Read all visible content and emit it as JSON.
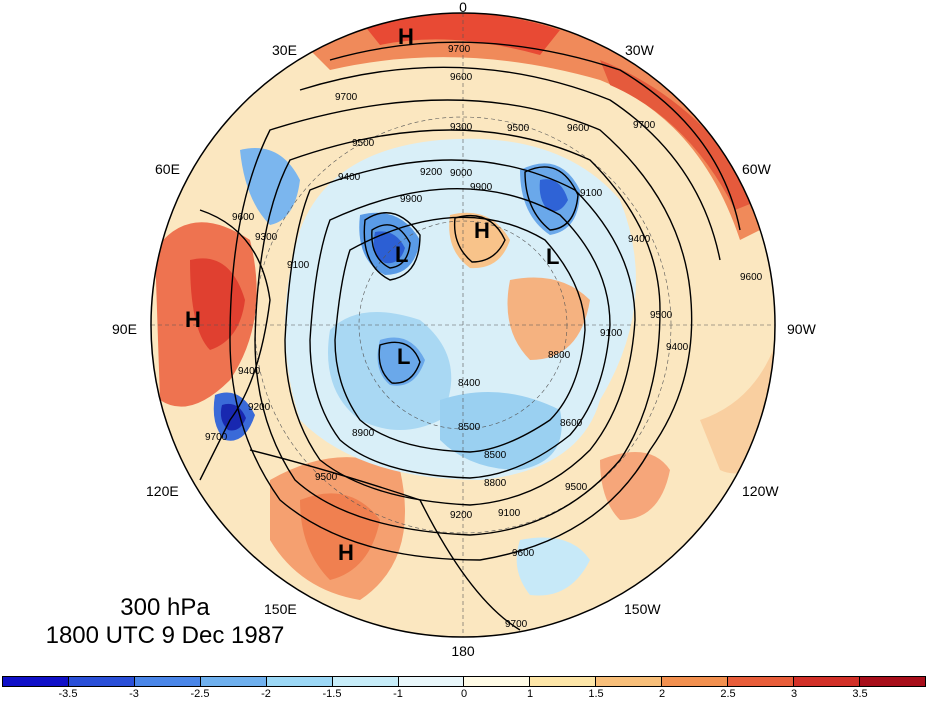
{
  "caption": {
    "level": "300 hPa",
    "time": "1800 UTC 9 Dec 1987"
  },
  "longitude_labels": [
    {
      "key": "0",
      "text": "0"
    },
    {
      "key": "30W",
      "text": "30W"
    },
    {
      "key": "60W",
      "text": "60W"
    },
    {
      "key": "90W",
      "text": "90W"
    },
    {
      "key": "120W",
      "text": "120W"
    },
    {
      "key": "150W",
      "text": "150W"
    },
    {
      "key": "180",
      "text": "180"
    },
    {
      "key": "150E",
      "text": "150E"
    },
    {
      "key": "120E",
      "text": "120E"
    },
    {
      "key": "90E",
      "text": "90E"
    },
    {
      "key": "60E",
      "text": "60E"
    },
    {
      "key": "30E",
      "text": "30E"
    }
  ],
  "pressure_centers": [
    {
      "type": "H"
    },
    {
      "type": "H"
    },
    {
      "type": "H"
    },
    {
      "type": "H"
    },
    {
      "type": "L"
    },
    {
      "type": "L"
    },
    {
      "type": "L"
    }
  ],
  "contour_labels": [
    "9700",
    "9600",
    "9700",
    "9500",
    "9600",
    "9700",
    "9400",
    "9900",
    "9500",
    "9300",
    "9000",
    "9100",
    "9400",
    "9900",
    "9200",
    "9600",
    "9300",
    "9100",
    "9600",
    "9400",
    "9500",
    "8800",
    "8400",
    "9100",
    "9400",
    "9200",
    "8900",
    "8500",
    "8500",
    "8600",
    "8800",
    "9500",
    "9500",
    "9200",
    "9100",
    "9600",
    "9700",
    "9700"
  ],
  "colorbar": {
    "ticks": [
      "-3.5",
      "-3",
      "-2.5",
      "-2",
      "-1.5",
      "-1",
      "0",
      "1",
      "1.5",
      "2",
      "2.5",
      "3",
      "3.5"
    ],
    "colors": [
      "#1010c8",
      "#2a4fd8",
      "#4a86e8",
      "#6fb0ee",
      "#9cd8f6",
      "#c7edf9",
      "#e9f7fb",
      "#fffbe6",
      "#fde6a8",
      "#f8bf7a",
      "#f2904f",
      "#e85d3a",
      "#d23028",
      "#a80e1a"
    ]
  },
  "anomaly_palette": {
    "strong_negative": "#3060d8",
    "negative": "#7db8ee",
    "weak_negative": "#c7e9f8",
    "neutral": "#f2f8fa",
    "weak_positive": "#fdf0c8",
    "positive": "#f5b27a",
    "strong_positive": "#e85a3c"
  }
}
